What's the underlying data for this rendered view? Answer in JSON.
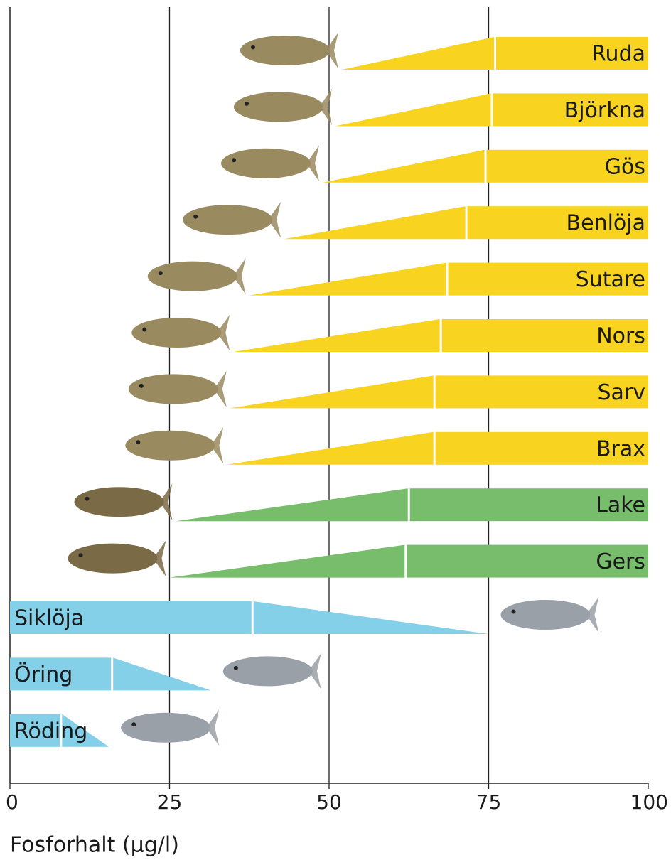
{
  "chart_data": {
    "type": "range-wedge",
    "x_label": "Fosforhalt (µg/l)",
    "xlim": [
      0,
      100
    ],
    "xticks": [
      0,
      25,
      50,
      75,
      100
    ],
    "grid": true,
    "series": [
      {
        "name": "Ruda",
        "color": "#f8d31f",
        "taper": "low",
        "start": 52,
        "full": 76,
        "end": 100
      },
      {
        "name": "Björkna",
        "color": "#f8d31f",
        "taper": "low",
        "start": 51,
        "full": 75.5,
        "end": 100
      },
      {
        "name": "Gös",
        "color": "#f8d31f",
        "taper": "low",
        "start": 49,
        "full": 74.5,
        "end": 100
      },
      {
        "name": "Benlöja",
        "color": "#f8d31f",
        "taper": "low",
        "start": 43,
        "full": 71.5,
        "end": 100
      },
      {
        "name": "Sutare",
        "color": "#f8d31f",
        "taper": "low",
        "start": 37.5,
        "full": 68.5,
        "end": 100
      },
      {
        "name": "Nors",
        "color": "#f8d31f",
        "taper": "low",
        "start": 35,
        "full": 67.5,
        "end": 100
      },
      {
        "name": "Sarv",
        "color": "#f8d31f",
        "taper": "low",
        "start": 34.5,
        "full": 66.5,
        "end": 100
      },
      {
        "name": "Brax",
        "color": "#f8d31f",
        "taper": "low",
        "start": 34,
        "full": 66.5,
        "end": 100
      },
      {
        "name": "Lake",
        "color": "#77bd6c",
        "taper": "low",
        "start": 26,
        "full": 62.5,
        "end": 100
      },
      {
        "name": "Gers",
        "color": "#77bd6c",
        "taper": "low",
        "start": 25,
        "full": 62,
        "end": 100
      },
      {
        "name": "Siklöja",
        "color": "#84d0e8",
        "taper": "high",
        "start": 0,
        "full": 38,
        "end": 75
      },
      {
        "name": "Öring",
        "color": "#84d0e8",
        "taper": "high",
        "start": 0,
        "full": 16,
        "end": 31.5
      },
      {
        "name": "Röding",
        "color": "#84d0e8",
        "taper": "high",
        "start": 0,
        "full": 8,
        "end": 15.5
      }
    ]
  }
}
